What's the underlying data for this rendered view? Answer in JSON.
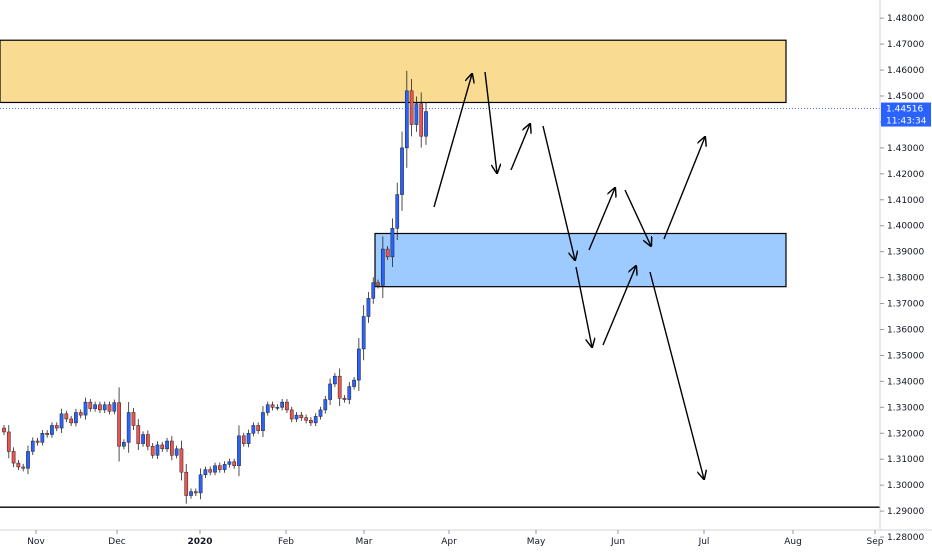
{
  "chart_data": {
    "type": "candlestick",
    "title": "",
    "colors": {
      "up": "#2962ff",
      "down": "#ef5350",
      "supply_zone_fill": "#f9dc92",
      "demand_zone_fill": "#9ecbff",
      "price_tag": "#2962ff",
      "support_line": "#000000",
      "arrows": "#000000"
    },
    "y_axis": {
      "position": "right",
      "ylim": [
        1.275,
        1.487
      ],
      "ticks": [
        "1.48000",
        "1.47000",
        "1.46000",
        "1.45000",
        "1.44000",
        "1.43000",
        "1.42000",
        "1.41000",
        "1.40000",
        "1.39000",
        "1.38000",
        "1.37000",
        "1.36000",
        "1.35000",
        "1.34000",
        "1.33000",
        "1.32000",
        "1.31000",
        "1.30000",
        "1.29000",
        "1.28000"
      ]
    },
    "x_axis": {
      "labels": [
        "Nov",
        "Dec",
        "2020",
        "Feb",
        "Mar",
        "Apr",
        "May",
        "Jun",
        "Jul",
        "Aug",
        "Sep"
      ]
    },
    "last_price": "1.44516",
    "countdown": "11:43:34",
    "zones": [
      {
        "name": "supply",
        "from": 1.4475,
        "to": 1.4715
      },
      {
        "name": "demand",
        "from": 1.3765,
        "to": 1.397
      }
    ],
    "support_level": 1.2915,
    "closes": [
      1.3205,
      1.313,
      1.3085,
      1.307,
      1.3065,
      1.313,
      1.317,
      1.3165,
      1.32,
      1.3195,
      1.323,
      1.322,
      1.3275,
      1.3255,
      1.324,
      1.328,
      1.327,
      1.332,
      1.3295,
      1.331,
      1.329,
      1.331,
      1.3285,
      1.3318,
      1.315,
      1.3165,
      1.328,
      1.323,
      1.316,
      1.3195,
      1.315,
      1.3115,
      1.3155,
      1.314,
      1.317,
      1.3115,
      1.314,
      1.305,
      1.296,
      1.2975,
      1.297,
      1.304,
      1.306,
      1.305,
      1.3075,
      1.306,
      1.308,
      1.309,
      1.3075,
      1.319,
      1.316,
      1.32,
      1.323,
      1.321,
      1.328,
      1.331,
      1.33,
      1.33,
      1.332,
      1.329,
      1.3255,
      1.327,
      1.326,
      1.325,
      1.324,
      1.3265,
      1.329,
      1.333,
      1.339,
      1.342,
      1.3335,
      1.333,
      1.338,
      1.3405,
      1.3525,
      1.365,
      1.372,
      1.378,
      1.377,
      1.391,
      1.388,
      1.399,
      1.412,
      1.43,
      1.452,
      1.439,
      1.447,
      1.4345,
      1.444
    ]
  }
}
